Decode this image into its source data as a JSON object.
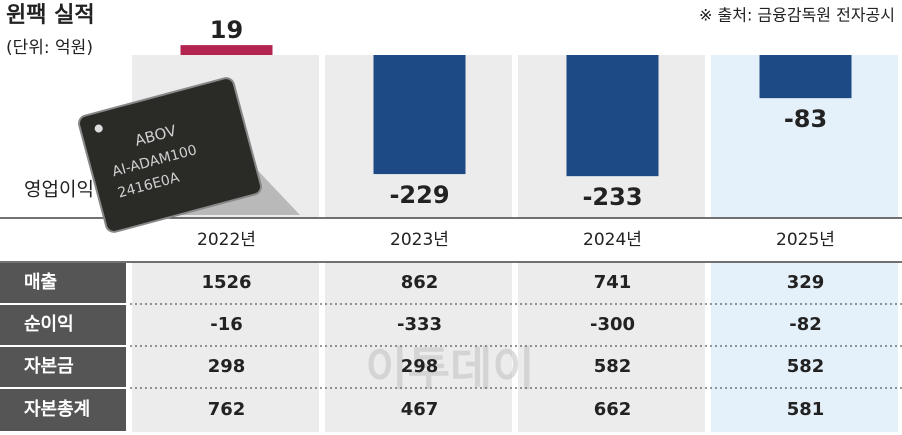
{
  "chart_data": {
    "type": "bar",
    "title": "윈팩 실적",
    "subtitle": "(단위: 억원)",
    "source": "※ 출처: 금융감독원 전자공시",
    "series_label": "영업이익",
    "categories": [
      "2022년",
      "2023년",
      "2024년",
      "2025년"
    ],
    "values": [
      19,
      -229,
      -233,
      -83
    ],
    "colors": [
      "#b3244f",
      "#1d4985",
      "#1d4985",
      "#1d4985"
    ]
  },
  "chip": {
    "brand": "ABOV",
    "model": "AI-ADAM100",
    "code": "2416E0A"
  },
  "table": {
    "rows": [
      {
        "label": "매출",
        "values": [
          1526,
          862,
          741,
          329
        ]
      },
      {
        "label": "순이익",
        "values": [
          -16,
          -333,
          -300,
          -82
        ]
      },
      {
        "label": "자본금",
        "values": [
          298,
          298,
          582,
          582
        ]
      },
      {
        "label": "자본총계",
        "values": [
          762,
          467,
          662,
          581
        ]
      }
    ]
  },
  "watermark": "이투데이"
}
